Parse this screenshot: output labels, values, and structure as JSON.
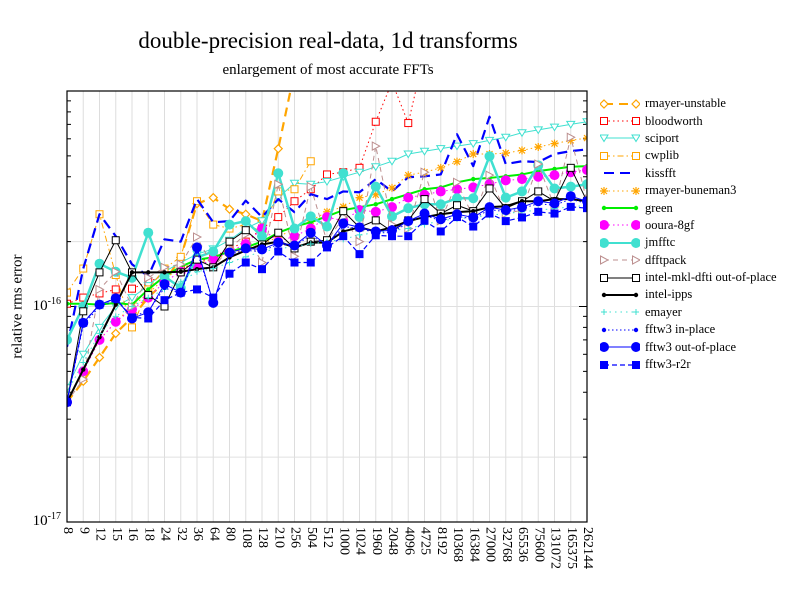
{
  "chart_data": {
    "type": "line",
    "title": "double-precision real-data, 1d transforms",
    "subtitle": "enlargement of most accurate FFTs",
    "xlabel": "",
    "ylabel": "relative rms error",
    "yscale": "log",
    "ylim": [
      1e-17,
      1e-15
    ],
    "yticks": [
      {
        "base": "10",
        "exp": "-16",
        "value": 1e-16
      },
      {
        "base": "10",
        "exp": "-17",
        "value": 1e-17
      }
    ],
    "grid": true,
    "legend_position": "right",
    "categories": [
      "8",
      "9",
      "12",
      "15",
      "16",
      "18",
      "24",
      "32",
      "36",
      "64",
      "80",
      "108",
      "128",
      "210",
      "256",
      "504",
      "512",
      "1000",
      "1024",
      "1960",
      "2048",
      "4096",
      "4725",
      "8192",
      "10368",
      "16384",
      "27000",
      "32768",
      "65536",
      "75600",
      "131072",
      "165375",
      "262144"
    ],
    "series": [
      {
        "name": "rmayer-unstable",
        "color": "#FFA500",
        "marker": "diamond-open",
        "values": [
          3.6e-17,
          4.5e-17,
          5.8e-17,
          7.5e-17,
          8.9e-17,
          1.1e-16,
          1.3e-16,
          1.69e-16,
          3e-16,
          3.2e-16,
          2.83e-16,
          2.68e-16,
          2.49e-16,
          5.4e-16,
          1.23e-15,
          null,
          null,
          null,
          null,
          null,
          null,
          null,
          null,
          null,
          null,
          null,
          null,
          null,
          null,
          null,
          null,
          null,
          null
        ]
      },
      {
        "name": "bloodworth",
        "color": "#FF0000",
        "marker": "square-open",
        "values": [
          1.03e-16,
          1.1e-16,
          1.15e-16,
          1.2e-16,
          1.21e-16,
          1.3e-16,
          1.4e-16,
          1.5e-16,
          1.6e-16,
          1.7e-16,
          1.85e-16,
          2e-16,
          2.3e-16,
          2.6e-16,
          3.08e-16,
          3.5e-16,
          4.1e-16,
          4.2e-16,
          4.4e-16,
          7.2e-16,
          1.1e-15,
          7.1e-16,
          1.5e-15,
          null,
          null,
          null,
          null,
          null,
          null,
          null,
          null,
          null,
          null
        ]
      },
      {
        "name": "sciport",
        "color": "#40E0D0",
        "marker": "triangle-down-open",
        "values": [
          4.2e-17,
          6e-17,
          8e-17,
          1e-16,
          1.1e-16,
          1.25e-16,
          1.45e-16,
          1.6e-16,
          1.75e-16,
          1.85e-16,
          2.03e-16,
          2.3e-16,
          2.5e-16,
          3.2e-16,
          3.73e-16,
          3.69e-16,
          3.8e-16,
          4e-16,
          4.2e-16,
          4.45e-16,
          4.72e-16,
          5.1e-16,
          5.25e-16,
          5.4e-16,
          5.55e-16,
          5.7e-16,
          5.9e-16,
          6.1e-16,
          6.4e-16,
          6.6e-16,
          6.8e-16,
          7e-16,
          7.2e-16
        ]
      },
      {
        "name": "cwplib",
        "color": "#FFA500",
        "marker": "square-open",
        "values": [
          1.16e-16,
          1.5e-16,
          2.68e-16,
          1.4e-16,
          8e-17,
          1.2e-16,
          1.5e-16,
          1.7e-16,
          3.08e-16,
          2.4e-16,
          2.3e-16,
          2.4e-16,
          2.23e-16,
          3.42e-16,
          3.5e-16,
          4.72e-16,
          null,
          null,
          null,
          null,
          null,
          null,
          null,
          null,
          null,
          null,
          null,
          null,
          null,
          null,
          null,
          null,
          null
        ]
      },
      {
        "name": "kissfft",
        "color": "#0000FF",
        "marker": "none",
        "values": [
          6.5e-17,
          1.5e-16,
          2.68e-16,
          2.12e-16,
          1.57e-16,
          1.38e-16,
          2.05e-16,
          2e-16,
          3.15e-16,
          2.46e-16,
          2.49e-16,
          3.1e-16,
          2.6e-16,
          3.15e-16,
          2.74e-16,
          3.32e-16,
          3.15e-16,
          3.42e-16,
          3.39e-16,
          3.9e-16,
          3.42e-16,
          3.98e-16,
          4.02e-16,
          4.1e-16,
          6.3e-16,
          4.48e-16,
          7.6e-16,
          4.58e-16,
          4.72e-16,
          4.68e-16,
          5.1e-16,
          5.26e-16,
          5.36e-16
        ]
      },
      {
        "name": "rmayer-buneman3",
        "color": "#FFA500",
        "marker": "asterisk",
        "values": [
          3.6e-17,
          5e-17,
          7e-17,
          8.5e-17,
          1e-16,
          1.15e-16,
          1.35e-16,
          1.5e-16,
          1.6e-16,
          1.65e-16,
          1.75e-16,
          1.85e-16,
          1.95e-16,
          2.1e-16,
          2.3e-16,
          2.5e-16,
          2.75e-16,
          2.9e-16,
          3.2e-16,
          3.3e-16,
          3.55e-16,
          4.07e-16,
          4.2e-16,
          4.4e-16,
          4.7e-16,
          5.1e-16,
          5.1e-16,
          5.15e-16,
          5.3e-16,
          5.5e-16,
          5.7e-16,
          5.9e-16,
          6.05e-16
        ]
      },
      {
        "name": "green",
        "color": "#00EE00",
        "marker": "dot",
        "values": [
          1.03e-16,
          1.03e-16,
          1.02e-16,
          1.04e-16,
          1.02e-16,
          1.2e-16,
          1.38e-16,
          1.53e-16,
          1.65e-16,
          1.69e-16,
          1.8e-16,
          1.88e-16,
          2e-16,
          2.2e-16,
          2.35e-16,
          2.46e-16,
          2.62e-16,
          2.8e-16,
          2.89e-16,
          2.98e-16,
          3.15e-16,
          3.32e-16,
          3.5e-16,
          3.57e-16,
          3.77e-16,
          3.9e-16,
          3.95e-16,
          4.02e-16,
          4.1e-16,
          4.25e-16,
          4.35e-16,
          4.45e-16,
          4.48e-16
        ]
      },
      {
        "name": "ooura-8gf",
        "color": "#FF00FF",
        "marker": "circle",
        "values": [
          3.6e-17,
          5e-17,
          7e-17,
          8.5e-17,
          9.7e-17,
          1.1e-16,
          1.3e-16,
          1.45e-16,
          1.55e-16,
          1.65e-16,
          1.8e-16,
          1.95e-16,
          2.3e-16,
          2e-16,
          2.12e-16,
          2.3e-16,
          2.6e-16,
          2.5e-16,
          2.8e-16,
          2.75e-16,
          2.89e-16,
          3.2e-16,
          3.3e-16,
          3.42e-16,
          3.5e-16,
          3.57e-16,
          3.7e-16,
          3.85e-16,
          3.9e-16,
          4e-16,
          4.07e-16,
          4.2e-16,
          4.3e-16
        ]
      },
      {
        "name": "jmfftc",
        "color": "#40E0D0",
        "marker": "circle",
        "values": [
          7e-17,
          1e-16,
          1.58e-16,
          1.45e-16,
          1.36e-16,
          2.2e-16,
          1.38e-16,
          1.22e-16,
          1.69e-16,
          1.8e-16,
          2.4e-16,
          2.49e-16,
          2.12e-16,
          4.15e-16,
          2.3e-16,
          2.62e-16,
          2.35e-16,
          4.15e-16,
          2.6e-16,
          3.6e-16,
          2.62e-16,
          2.86e-16,
          2.98e-16,
          2.98e-16,
          3.18e-16,
          3.18e-16,
          4.98e-16,
          3.2e-16,
          3.42e-16,
          4.52e-16,
          3.53e-16,
          3.6e-16,
          3.69e-16
        ]
      },
      {
        "name": "dfftpack",
        "color": "#BC8F8F",
        "marker": "triangle-right-open",
        "values": [
          3.6e-17,
          4.6e-17,
          1.2e-16,
          1.45e-16,
          1e-16,
          1.36e-16,
          1.52e-16,
          1.57e-16,
          2.1e-16,
          1.52e-16,
          1.86e-16,
          2.16e-16,
          1.6e-16,
          3.69e-16,
          1.71e-16,
          3.6e-16,
          2e-16,
          2.6e-16,
          2e-16,
          5.55e-16,
          2.4e-16,
          2.3e-16,
          4.2e-16,
          2.5e-16,
          3.77e-16,
          2.6e-16,
          4.07e-16,
          2.7e-16,
          2.8e-16,
          4.58e-16,
          2.9e-16,
          6.1e-16,
          3.08e-16
        ]
      },
      {
        "name": "intel-mkl-dfti out-of-place",
        "color": "#000000",
        "marker": "square-open",
        "values": [
          3.6e-17,
          9.5e-17,
          1.44e-16,
          2.03e-16,
          1.44e-16,
          1.13e-16,
          1e-16,
          1.44e-16,
          1.65e-16,
          1.52e-16,
          2e-16,
          2.26e-16,
          1.94e-16,
          2.2e-16,
          1.86e-16,
          2e-16,
          2.03e-16,
          2.77e-16,
          2.33e-16,
          2.51e-16,
          2.23e-16,
          2.51e-16,
          3.15e-16,
          2.7e-16,
          2.95e-16,
          2.77e-16,
          3.53e-16,
          2.86e-16,
          3.08e-16,
          3.42e-16,
          3.08e-16,
          4.4e-16,
          3.08e-16
        ]
      },
      {
        "name": "intel-ipps",
        "color": "#000000",
        "marker": "dot",
        "values": [
          3.6e-17,
          5.1e-17,
          7.2e-17,
          1.02e-16,
          1.44e-16,
          1.44e-16,
          1.44e-16,
          1.45e-16,
          1.49e-16,
          1.52e-16,
          1.69e-16,
          1.82e-16,
          1.94e-16,
          2e-16,
          1.88e-16,
          1.98e-16,
          1.98e-16,
          2.23e-16,
          2.33e-16,
          2.23e-16,
          2.33e-16,
          2.49e-16,
          2.6e-16,
          2.68e-16,
          2.74e-16,
          2.77e-16,
          2.89e-16,
          2.92e-16,
          3.08e-16,
          3.08e-16,
          3.15e-16,
          3.15e-16,
          3.08e-16
        ]
      },
      {
        "name": "emayer",
        "color": "#40E0D0",
        "marker": "plus",
        "values": [
          4e-17,
          5.5e-17,
          7.5e-17,
          9e-17,
          1e-16,
          1.1e-16,
          1.2e-16,
          1.3e-16,
          1.45e-16,
          1.5e-16,
          1.6e-16,
          1.7e-16,
          1.8e-16,
          1.85e-16,
          1.9e-16,
          1.95e-16,
          2e-16,
          2.05e-16,
          2.15e-16,
          2.2e-16,
          2.25e-16,
          2.3e-16,
          2.4e-16,
          2.5e-16,
          2.55e-16,
          2.6e-16,
          2.65e-16,
          2.7e-16,
          2.75e-16,
          2.8e-16,
          2.85e-16,
          2.9e-16,
          2.95e-16
        ]
      },
      {
        "name": "fftw3 in-place",
        "color": "#0000FF",
        "marker": "dot",
        "values": [
          3.6e-17,
          8.2e-17,
          1e-16,
          1.07e-16,
          9e-17,
          9.5e-17,
          1.22e-16,
          1.15e-16,
          1.8e-16,
          1.05e-16,
          1.75e-16,
          1.82e-16,
          1.8e-16,
          1.95e-16,
          1.9e-16,
          2.15e-16,
          1.9e-16,
          2.35e-16,
          2.3e-16,
          2.2e-16,
          2.2e-16,
          2.45e-16,
          2.65e-16,
          2.5e-16,
          2.62e-16,
          2.55e-16,
          2.82e-16,
          2.75e-16,
          2.85e-16,
          3e-16,
          2.95e-16,
          3.15e-16,
          3e-16
        ]
      },
      {
        "name": "fftw3 out-of-place",
        "color": "#0000FF",
        "marker": "circle",
        "values": [
          3.6e-17,
          8.4e-17,
          1.02e-16,
          1.09e-16,
          8.8e-17,
          9.4e-17,
          1.27e-16,
          1.16e-16,
          1.88e-16,
          1.04e-16,
          1.78e-16,
          1.86e-16,
          1.84e-16,
          1.98e-16,
          1.92e-16,
          2.2e-16,
          1.92e-16,
          2.43e-16,
          2.33e-16,
          2.23e-16,
          2.26e-16,
          2.49e-16,
          2.7e-16,
          2.54e-16,
          2.68e-16,
          2.59e-16,
          2.89e-16,
          2.8e-16,
          2.89e-16,
          3.08e-16,
          3.01e-16,
          3.25e-16,
          3.08e-16
        ]
      },
      {
        "name": "fftw3-r2r",
        "color": "#0000FF",
        "marker": "square",
        "values": [
          3.6e-17,
          8.4e-17,
          1.02e-16,
          1.09e-16,
          8.9e-17,
          8.8e-17,
          1.07e-16,
          1.16e-16,
          1.2e-16,
          1.1e-16,
          1.42e-16,
          1.6e-16,
          1.49e-16,
          1.8e-16,
          1.6e-16,
          1.6e-16,
          1.88e-16,
          2.12e-16,
          1.75e-16,
          2.14e-16,
          2.12e-16,
          2.12e-16,
          2.5e-16,
          2.23e-16,
          2.6e-16,
          2.35e-16,
          2.7e-16,
          2.49e-16,
          2.59e-16,
          2.75e-16,
          2.7e-16,
          2.9e-16,
          2.86e-16
        ]
      }
    ]
  }
}
